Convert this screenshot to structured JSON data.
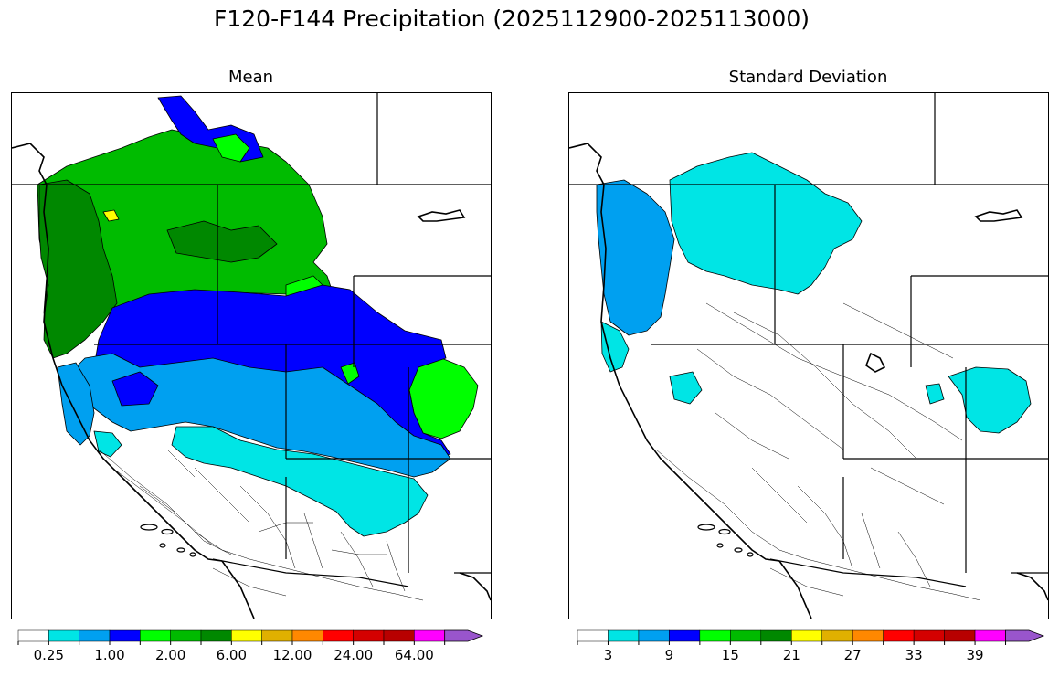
{
  "title": "F120-F144 Precipitation (2025112900-2025113000)",
  "panels": [
    {
      "title": "Mean",
      "colorbar": {
        "colors": [
          "#ffffff",
          "#00e5e5",
          "#00a0f0",
          "#0000ff",
          "#00ff00",
          "#00bb00",
          "#008800",
          "#ffff00",
          "#e0b000",
          "#ff8800",
          "#ff0000",
          "#d40000",
          "#b80000",
          "#ff00ff",
          "#9955cc"
        ],
        "labels": [
          "0.25",
          "1.00",
          "2.00",
          "6.00",
          "12.00",
          "24.00",
          "64.00"
        ]
      }
    },
    {
      "title": "Standard Deviation",
      "colorbar": {
        "colors": [
          "#ffffff",
          "#00e5e5",
          "#00a0f0",
          "#0000ff",
          "#00ff00",
          "#00bb00",
          "#008800",
          "#ffff00",
          "#e0b000",
          "#ff8800",
          "#ff0000",
          "#d40000",
          "#b80000",
          "#ff00ff",
          "#9955cc"
        ],
        "labels": [
          "3",
          "9",
          "15",
          "21",
          "27",
          "33",
          "39"
        ]
      }
    }
  ]
}
